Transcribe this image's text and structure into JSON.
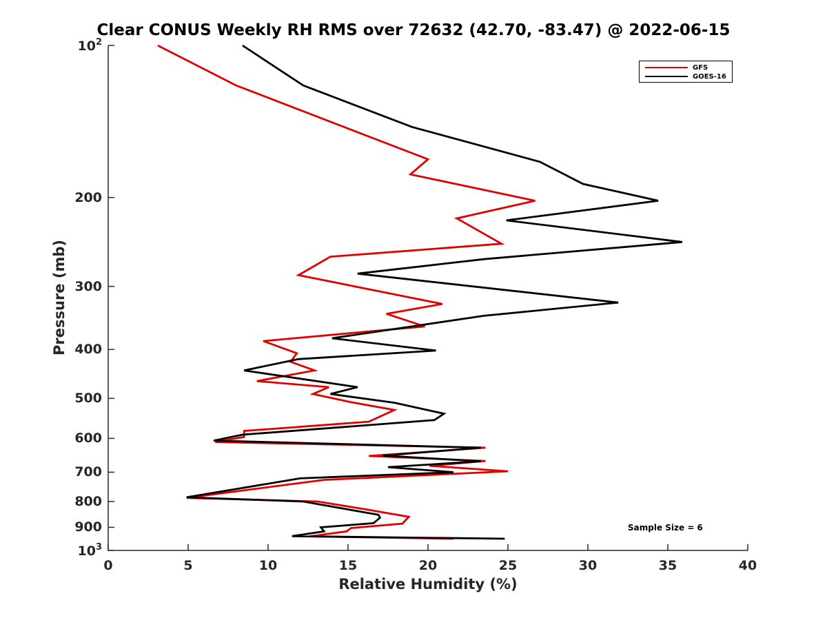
{
  "chart_data": {
    "type": "line",
    "title": "Clear CONUS Weekly RH RMS over 72632 (42.70, -83.47) @ 2022-06-15",
    "xlabel": "Relative Humidity (%)",
    "ylabel": "Pressure (mb)",
    "xlim": [
      0,
      40
    ],
    "ylim": [
      100,
      1000
    ],
    "y_scale": "log",
    "y_reversed": true,
    "xticks": [
      "0",
      "5",
      "10",
      "15",
      "20",
      "25",
      "30",
      "35",
      "40"
    ],
    "yticks": [
      {
        "value": 100,
        "base": "10",
        "exp": "2"
      },
      {
        "value": 200,
        "label": "200"
      },
      {
        "value": 300,
        "label": "300"
      },
      {
        "value": 400,
        "label": "400"
      },
      {
        "value": 500,
        "label": "500"
      },
      {
        "value": 600,
        "label": "600"
      },
      {
        "value": 700,
        "label": "700"
      },
      {
        "value": 800,
        "label": "800"
      },
      {
        "value": 900,
        "label": "900"
      },
      {
        "value": 1000,
        "base": "10",
        "exp": "3"
      }
    ],
    "grid": false,
    "legend_position": "top-right",
    "annotation": "Sample Size = 6",
    "series": [
      {
        "name": "GFS",
        "color": "#e00000",
        "points": [
          [
            3.1,
            100
          ],
          [
            8.0,
            120
          ],
          [
            20.0,
            168
          ],
          [
            18.9,
            180
          ],
          [
            26.7,
            203
          ],
          [
            21.8,
            220
          ],
          [
            24.6,
            247
          ],
          [
            13.9,
            262
          ],
          [
            11.9,
            285
          ],
          [
            20.9,
            325
          ],
          [
            17.4,
            340
          ],
          [
            19.8,
            360
          ],
          [
            9.7,
            385
          ],
          [
            11.8,
            407
          ],
          [
            11.4,
            423
          ],
          [
            12.9,
            440
          ],
          [
            9.3,
            462
          ],
          [
            13.8,
            475
          ],
          [
            12.8,
            490
          ],
          [
            15.1,
            508
          ],
          [
            17.9,
            527
          ],
          [
            16.3,
            556
          ],
          [
            8.5,
            580
          ],
          [
            8.5,
            596
          ],
          [
            6.7,
            610
          ],
          [
            23.6,
            626
          ],
          [
            16.3,
            650
          ],
          [
            23.6,
            665
          ],
          [
            20.1,
            680
          ],
          [
            25.0,
            697
          ],
          [
            13.5,
            725
          ],
          [
            4.9,
            787
          ],
          [
            13.1,
            800
          ],
          [
            16.2,
            830
          ],
          [
            18.8,
            858
          ],
          [
            18.4,
            885
          ],
          [
            15.2,
            903
          ],
          [
            14.9,
            917
          ],
          [
            12.6,
            938
          ],
          [
            21.6,
            948
          ]
        ]
      },
      {
        "name": "GOES-16",
        "color": "#000000",
        "points": [
          [
            8.4,
            100
          ],
          [
            12.2,
            120
          ],
          [
            19.0,
            145
          ],
          [
            27.0,
            170
          ],
          [
            29.7,
            188
          ],
          [
            34.4,
            203
          ],
          [
            24.9,
            222
          ],
          [
            35.9,
            245
          ],
          [
            23.5,
            265
          ],
          [
            15.6,
            283
          ],
          [
            31.9,
            323
          ],
          [
            23.5,
            343
          ],
          [
            14.0,
            380
          ],
          [
            20.5,
            402
          ],
          [
            11.9,
            418
          ],
          [
            8.5,
            440
          ],
          [
            15.6,
            475
          ],
          [
            13.9,
            490
          ],
          [
            17.9,
            510
          ],
          [
            21.0,
            536
          ],
          [
            20.4,
            552
          ],
          [
            8.4,
            590
          ],
          [
            6.6,
            606
          ],
          [
            23.3,
            626
          ],
          [
            17.2,
            649
          ],
          [
            23.3,
            666
          ],
          [
            17.5,
            684
          ],
          [
            21.6,
            700
          ],
          [
            12.0,
            720
          ],
          [
            4.9,
            785
          ],
          [
            12.2,
            800
          ],
          [
            16.9,
            850
          ],
          [
            17.0,
            861
          ],
          [
            16.6,
            883
          ],
          [
            13.3,
            900
          ],
          [
            13.5,
            917
          ],
          [
            11.5,
            937
          ],
          [
            24.8,
            948
          ]
        ]
      }
    ]
  }
}
